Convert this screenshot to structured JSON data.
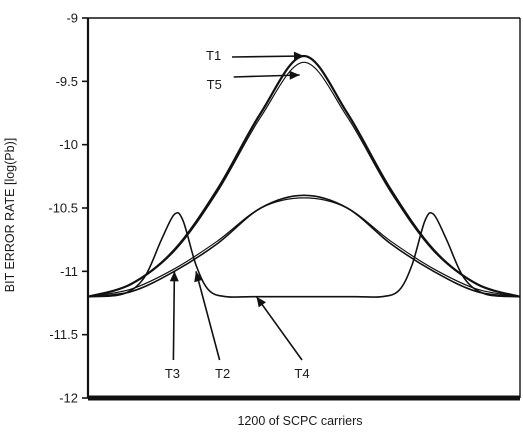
{
  "chart_data": {
    "type": "line",
    "title": "",
    "xlabel": "1200 of SCPC carriers",
    "ylabel": "BIT ERROR RATE [log(Pb)]",
    "xlim": [
      0,
      1
    ],
    "ylim": [
      -12,
      -9
    ],
    "yticks": [
      "-9",
      "-9.5",
      "-10",
      "-10.5",
      "-11",
      "-11.5",
      "-12"
    ],
    "grid": false,
    "legend": "none",
    "series": [
      {
        "name": "T1",
        "x": [
          0,
          0.1,
          0.2,
          0.3,
          0.4,
          0.5,
          0.6,
          0.7,
          0.8,
          0.9,
          1.0
        ],
        "y": [
          -11.2,
          -11.1,
          -10.83,
          -10.35,
          -9.75,
          -9.3,
          -9.75,
          -10.35,
          -10.83,
          -11.1,
          -11.2
        ]
      },
      {
        "name": "T5",
        "x": [
          0,
          0.1,
          0.2,
          0.3,
          0.4,
          0.5,
          0.6,
          0.7,
          0.8,
          0.9,
          1.0
        ],
        "y": [
          -11.2,
          -11.1,
          -10.84,
          -10.37,
          -9.78,
          -9.35,
          -9.78,
          -10.37,
          -10.84,
          -11.1,
          -11.2
        ]
      },
      {
        "name": "T2",
        "x": [
          0,
          0.1,
          0.2,
          0.3,
          0.4,
          0.5,
          0.6,
          0.7,
          0.8,
          0.9,
          1.0
        ],
        "y": [
          -11.2,
          -11.16,
          -11.0,
          -10.78,
          -10.5,
          -10.4,
          -10.5,
          -10.78,
          -11.0,
          -11.16,
          -11.2
        ]
      },
      {
        "name": "T3",
        "x": [
          0,
          0.08,
          0.13,
          0.17,
          0.2,
          0.22,
          0.25,
          0.28,
          0.32,
          0.38,
          0.5,
          0.62,
          0.68,
          0.72,
          0.75,
          0.78,
          0.8,
          0.83,
          0.87,
          0.92,
          1.0
        ],
        "y": [
          -11.2,
          -11.18,
          -11.05,
          -10.75,
          -10.55,
          -10.6,
          -10.95,
          -11.15,
          -11.2,
          -11.2,
          -11.2,
          -11.2,
          -11.2,
          -11.15,
          -10.95,
          -10.6,
          -10.55,
          -10.75,
          -11.05,
          -11.18,
          -11.2
        ]
      },
      {
        "name": "T4",
        "x": [
          0,
          0.1,
          0.2,
          0.3,
          0.4,
          0.5,
          0.6,
          0.7,
          0.8,
          0.9,
          1.0
        ],
        "y": [
          -11.2,
          -11.14,
          -10.98,
          -10.76,
          -10.5,
          -10.42,
          -10.5,
          -10.76,
          -10.98,
          -11.14,
          -11.2
        ]
      }
    ],
    "annotations": [
      {
        "text": "T1",
        "x": 0.5,
        "y": -9.3
      },
      {
        "text": "T5",
        "x": 0.49,
        "y": -9.45
      },
      {
        "text": "T3",
        "x": 0.2,
        "y": -11.0
      },
      {
        "text": "T2",
        "x": 0.25,
        "y": -11.0
      },
      {
        "text": "T4",
        "x": 0.39,
        "y": -11.2
      }
    ]
  }
}
